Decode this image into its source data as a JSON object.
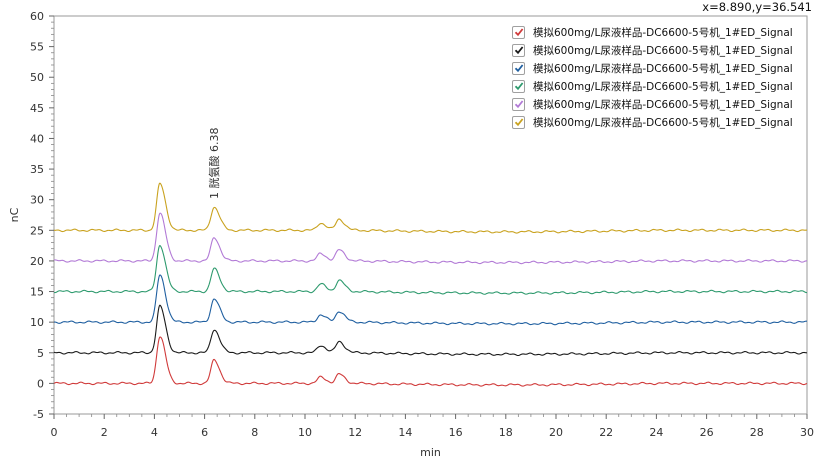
{
  "coord_readout": "x=8.890,y=36.541",
  "chart_data": {
    "type": "line",
    "title": "",
    "xlabel": "min",
    "ylabel": "nC",
    "xlim": [
      0,
      30
    ],
    "ylim": [
      -5,
      60
    ],
    "x_ticks": [
      0,
      2,
      4,
      6,
      8,
      10,
      12,
      14,
      16,
      18,
      20,
      22,
      24,
      26,
      28,
      30
    ],
    "y_ticks": [
      -5,
      0,
      5,
      10,
      15,
      20,
      25,
      30,
      35,
      40,
      45,
      50,
      55,
      60
    ],
    "grid": false,
    "legend_position": "top-right",
    "annotation": {
      "text": "1 胱氨酸 6.38",
      "x": 6.38
    },
    "series": [
      {
        "name": "模拟600mg/L尿液样品-DC6600-5号机_1#ED_Signal",
        "color": "#d03a3a",
        "offset": 0,
        "peaks": [
          {
            "x": 4.22,
            "height": 7.7
          },
          {
            "x": 6.38,
            "height": 3.8
          },
          {
            "x": 10.62,
            "height": 1.0
          },
          {
            "x": 11.36,
            "height": 1.5
          }
        ]
      },
      {
        "name": "模拟600mg/L尿液样品-DC6600-5号机_1#ED_Signal",
        "color": "#1a1a1a",
        "offset": 5,
        "peaks": [
          {
            "x": 4.22,
            "height": 7.6
          },
          {
            "x": 6.38,
            "height": 3.8
          },
          {
            "x": 10.62,
            "height": 1.2
          },
          {
            "x": 11.36,
            "height": 1.8
          }
        ]
      },
      {
        "name": "模拟600mg/L尿液样品-DC6600-5号机_1#ED_Signal",
        "color": "#1f5fa0",
        "offset": 10,
        "peaks": [
          {
            "x": 4.22,
            "height": 7.7
          },
          {
            "x": 6.38,
            "height": 3.8
          },
          {
            "x": 10.62,
            "height": 1.2
          },
          {
            "x": 11.36,
            "height": 1.8
          }
        ]
      },
      {
        "name": "模拟600mg/L尿液样品-DC6600-5号机_1#ED_Signal",
        "color": "#2e9a6e",
        "offset": 15,
        "peaks": [
          {
            "x": 4.22,
            "height": 7.6
          },
          {
            "x": 6.38,
            "height": 3.7
          },
          {
            "x": 10.62,
            "height": 1.2
          },
          {
            "x": 11.36,
            "height": 1.8
          }
        ]
      },
      {
        "name": "模拟600mg/L尿液样品-DC6600-5号机_1#ED_Signal",
        "color": "#b27ad6",
        "offset": 20,
        "peaks": [
          {
            "x": 4.22,
            "height": 7.8
          },
          {
            "x": 6.38,
            "height": 3.8
          },
          {
            "x": 10.62,
            "height": 1.2
          },
          {
            "x": 11.36,
            "height": 1.8
          }
        ]
      },
      {
        "name": "模拟600mg/L尿液样品-DC6600-5号机_1#ED_Signal",
        "color": "#c9a21f",
        "offset": 25,
        "peaks": [
          {
            "x": 4.22,
            "height": 7.6
          },
          {
            "x": 6.38,
            "height": 3.8
          },
          {
            "x": 10.62,
            "height": 1.2
          },
          {
            "x": 11.36,
            "height": 1.8
          }
        ]
      }
    ]
  }
}
